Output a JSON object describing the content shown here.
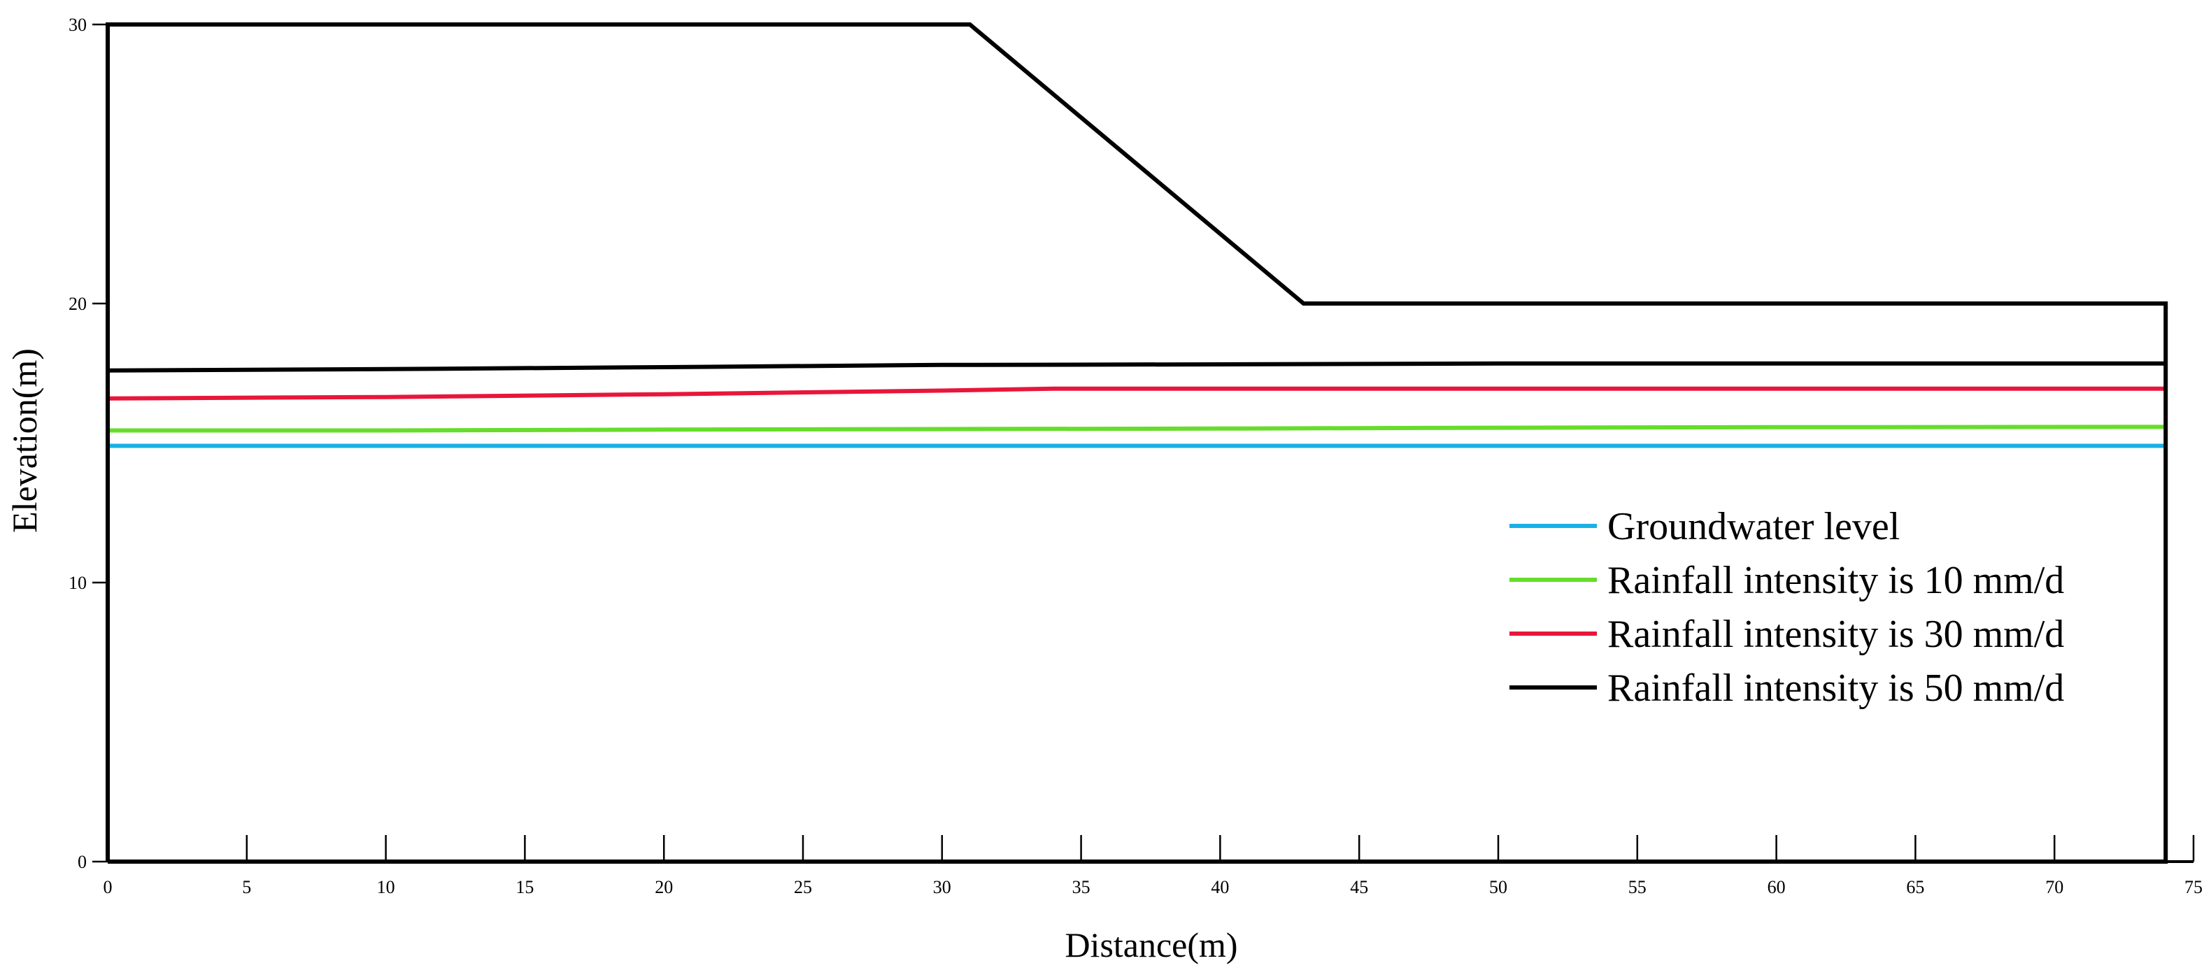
{
  "chart_data": {
    "type": "line",
    "xlabel": "Distance(m)",
    "ylabel": "Elevation(m)",
    "xlim": [
      0,
      75
    ],
    "ylim": [
      0,
      30
    ],
    "x_ticks": [
      "0",
      "5",
      "10",
      "15",
      "20",
      "25",
      "30",
      "35",
      "40",
      "45",
      "50",
      "55",
      "60",
      "65",
      "70",
      "75"
    ],
    "y_ticks": [
      "0",
      "10",
      "20",
      "30"
    ],
    "grid": false,
    "legend_position": "right",
    "slope_profile": {
      "x": [
        0,
        0,
        31,
        43,
        74,
        74,
        0
      ],
      "y": [
        0,
        30,
        30,
        20,
        20,
        0,
        0
      ],
      "color": "#000000"
    },
    "series": [
      {
        "name": "Groundwater level",
        "color": "#1ab0e6",
        "x": [
          0,
          74
        ],
        "y": [
          14.9,
          14.9
        ]
      },
      {
        "name": "Rainfall intensity is 10 mm/d",
        "color": "#66dd2a",
        "x": [
          0,
          10,
          20,
          30,
          40,
          50,
          60,
          74
        ],
        "y": [
          15.45,
          15.45,
          15.48,
          15.5,
          15.52,
          15.55,
          15.57,
          15.58
        ]
      },
      {
        "name": "Rainfall intensity is 30 mm/d",
        "color": "#e8163a",
        "x": [
          0,
          10,
          20,
          30,
          34,
          40,
          50,
          60,
          74
        ],
        "y": [
          16.6,
          16.65,
          16.75,
          16.88,
          16.95,
          16.95,
          16.95,
          16.95,
          16.95
        ]
      },
      {
        "name": "Rainfall intensity is 50 mm/d",
        "color": "#000000",
        "x": [
          0,
          10,
          20,
          30,
          40,
          50,
          60,
          74
        ],
        "y": [
          17.6,
          17.65,
          17.72,
          17.8,
          17.82,
          17.85,
          17.85,
          17.85
        ]
      }
    ]
  }
}
